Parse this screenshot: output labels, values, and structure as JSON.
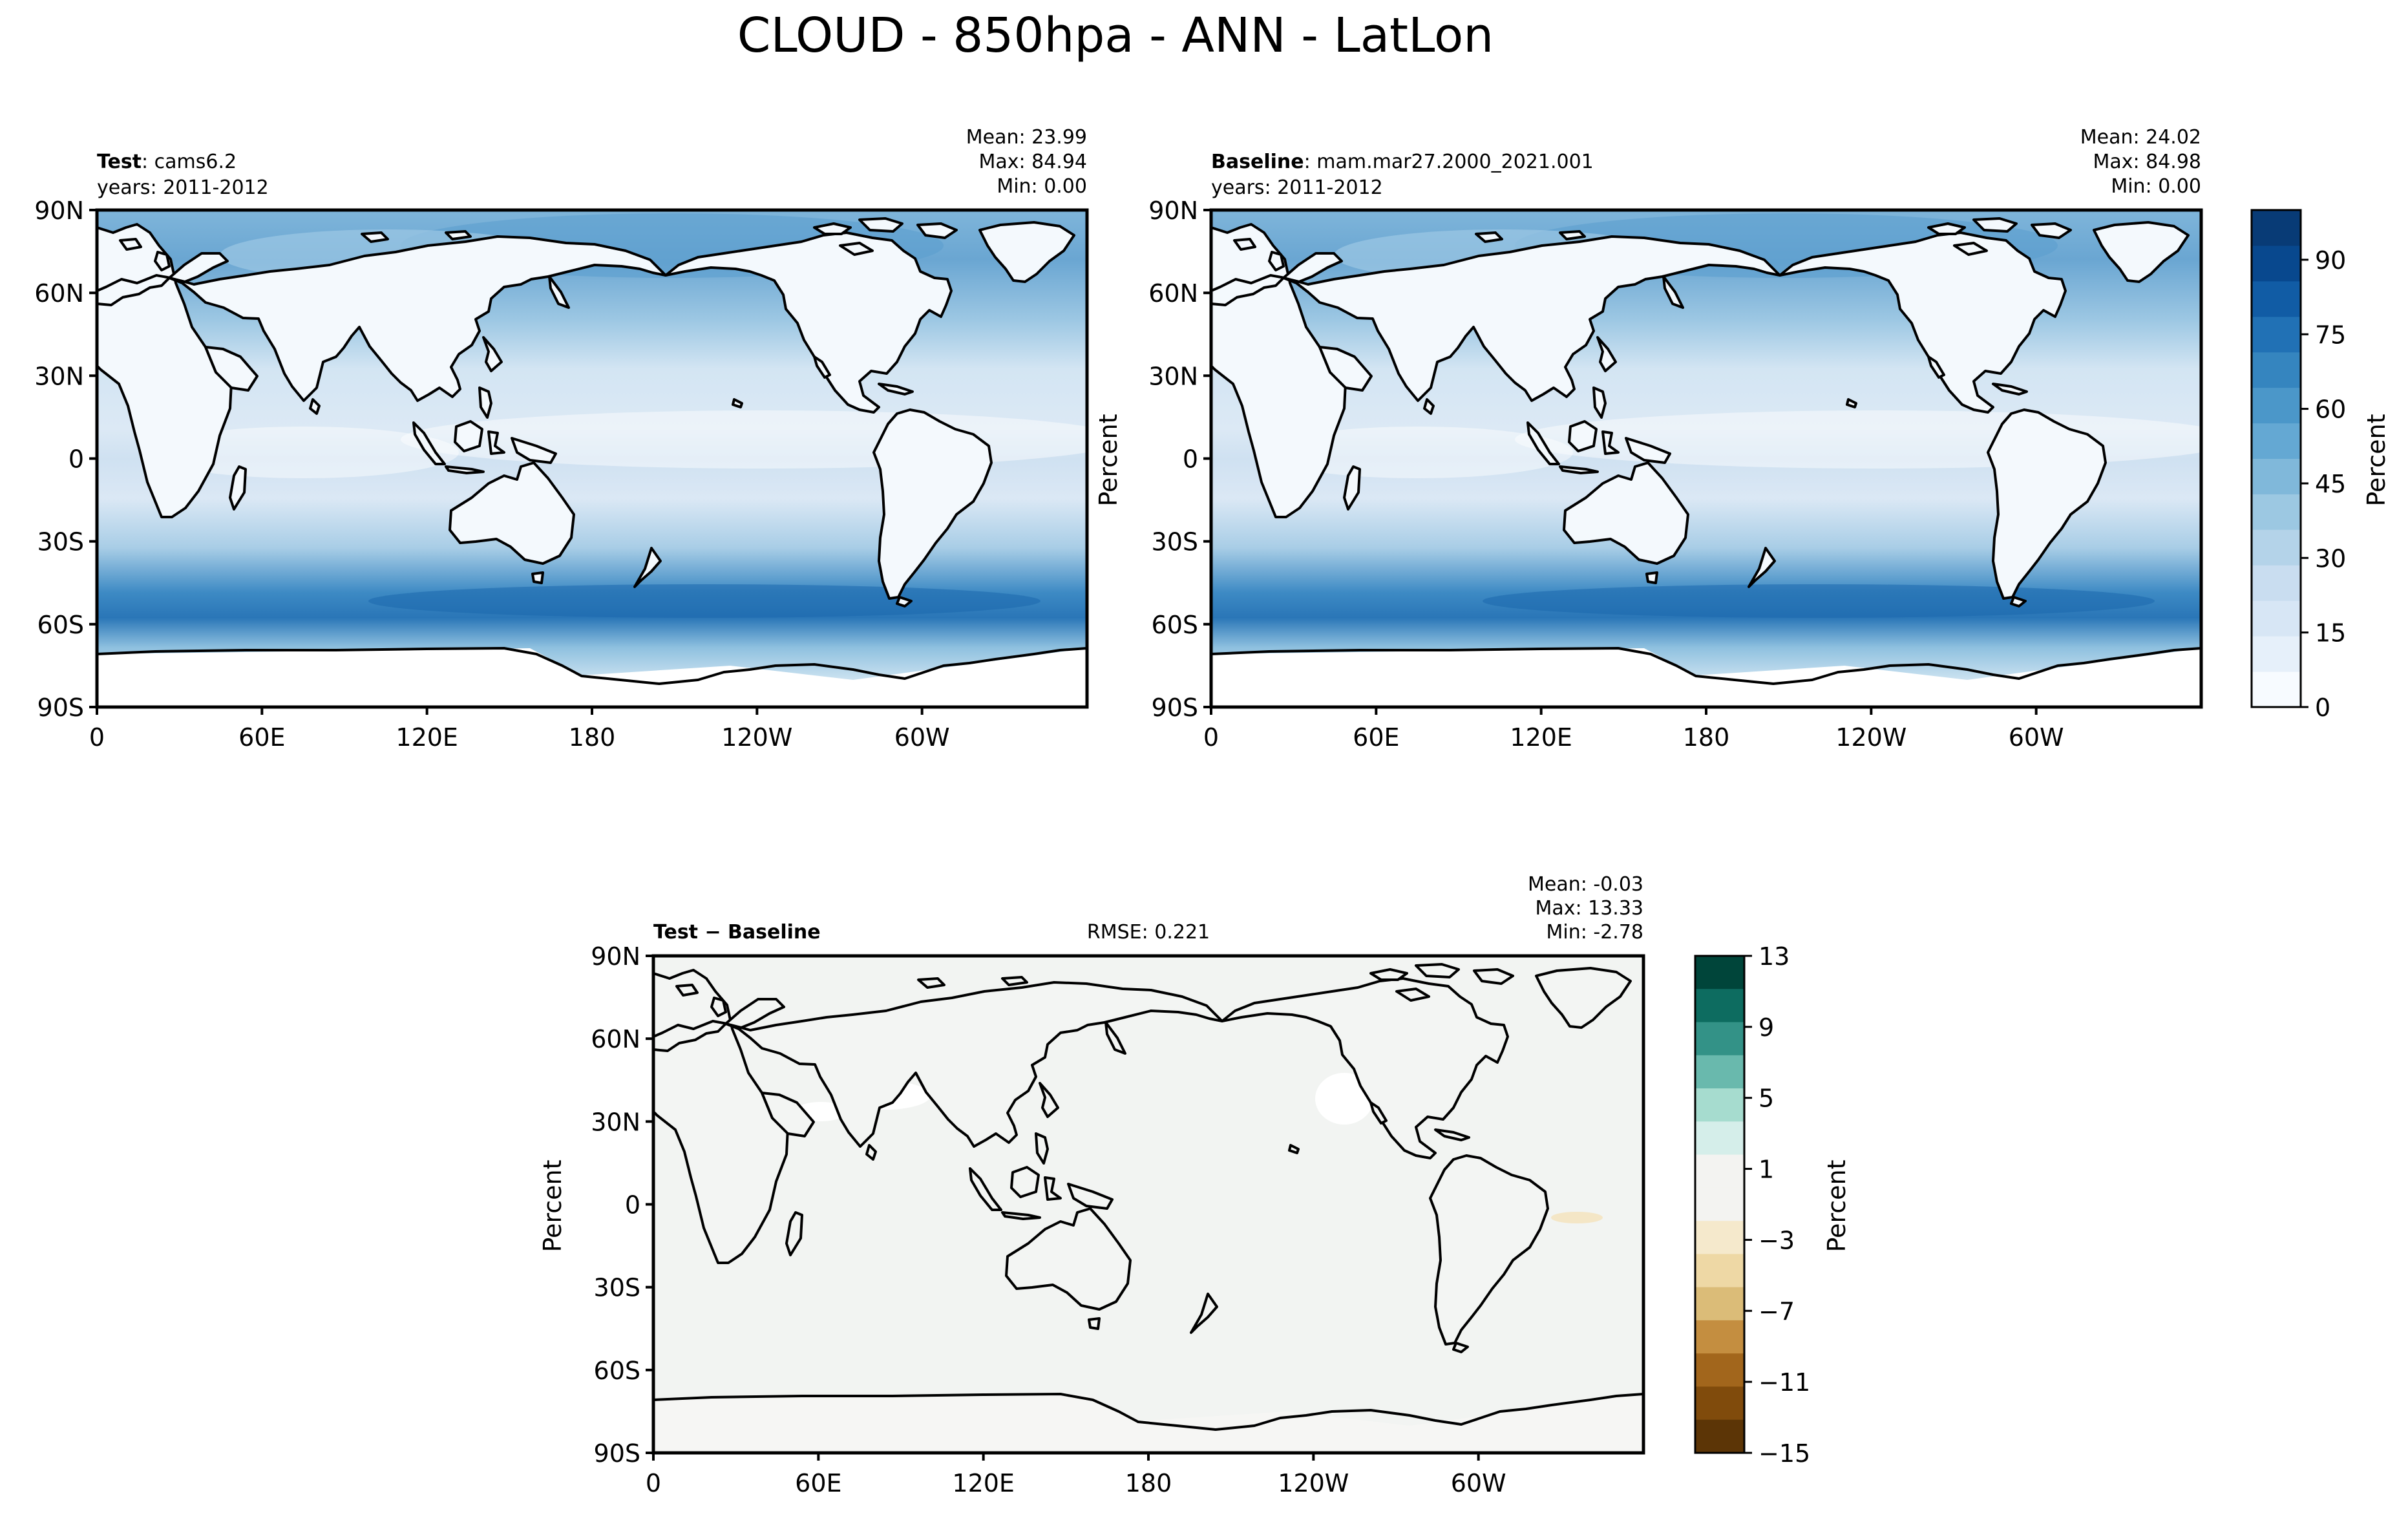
{
  "figure": {
    "title": "CLOUD - 850hpa - ANN - LatLon"
  },
  "axes_ticks": {
    "lat": [
      "90N",
      "60N",
      "30N",
      "0",
      "30S",
      "60S",
      "90S"
    ],
    "lon": [
      "0",
      "60E",
      "120E",
      "180",
      "120W",
      "60W"
    ]
  },
  "panels": {
    "test": {
      "label_bold": "Test",
      "label_rest": ": cams6.2",
      "years": "years: 2011-2012",
      "mean": "Mean: 23.99",
      "max": "Max: 84.94",
      "min": "Min:  0.00"
    },
    "baseline": {
      "label_bold": "Baseline",
      "label_rest": ": mam.mar27.2000_2021.001",
      "years": "years: 2011-2012",
      "mean": "Mean: 24.02",
      "max": "Max: 84.98",
      "min": "Min:  0.00",
      "ylabel": "Percent"
    },
    "diff": {
      "label": "Test − Baseline",
      "rmse": "RMSE: 0.221",
      "mean": "Mean: -0.03",
      "max": "Max: 13.33",
      "min": "Min: -2.78",
      "ylabel": "Percent"
    }
  },
  "colorbar_main": {
    "label": "Percent",
    "ticks": [
      "0",
      "15",
      "30",
      "45",
      "60",
      "75",
      "90"
    ],
    "colors": [
      "#f7fbff",
      "#e6f0fa",
      "#d7e6f5",
      "#c9ddf0",
      "#b4d3e9",
      "#9cc8e2",
      "#80b8da",
      "#64a8d3",
      "#4b97c9",
      "#3585bf",
      "#2171b5",
      "#115ca5",
      "#08488e",
      "#083b76"
    ]
  },
  "colorbar_diff": {
    "label": "Percent",
    "ticks": [
      "13",
      "9",
      "5",
      "1",
      "−3",
      "−7",
      "−11",
      "−15"
    ],
    "colors": [
      "#00453a",
      "#0d6c60",
      "#339287",
      "#69b9ad",
      "#a6dccf",
      "#d5eeea",
      "#f3f3f1",
      "#f3f3f1",
      "#f5e9cc",
      "#eed8a5",
      "#dbbc78",
      "#c48e40",
      "#a2661c",
      "#804b0c",
      "#5c3506"
    ]
  },
  "chart_data": [
    {
      "type": "heatmap",
      "title": "CLOUD - 850hpa - ANN - LatLon",
      "panel": "Test: cams6.2",
      "years": "2011-2012",
      "variable": "CLOUD 850hpa annual mean",
      "units": "Percent",
      "x_ticks": [
        "0",
        "60E",
        "120E",
        "180",
        "120W",
        "60W"
      ],
      "y_ticks": [
        "90N",
        "60N",
        "30N",
        "0",
        "30S",
        "60S",
        "90S"
      ],
      "color_range": [
        0,
        100
      ],
      "stats": {
        "mean": 23.99,
        "max": 84.94,
        "min": 0.0
      }
    },
    {
      "type": "heatmap",
      "panel": "Baseline: mam.mar27.2000_2021.001",
      "years": "2011-2012",
      "units": "Percent",
      "x_ticks": [
        "0",
        "60E",
        "120E",
        "180",
        "120W",
        "60W"
      ],
      "y_ticks": [
        "90N",
        "60N",
        "30N",
        "0",
        "30S",
        "60S",
        "90S"
      ],
      "color_range": [
        0,
        100
      ],
      "stats": {
        "mean": 24.02,
        "max": 84.98,
        "min": 0.0
      }
    },
    {
      "type": "heatmap",
      "panel": "Test − Baseline",
      "units": "Percent",
      "x_ticks": [
        "0",
        "60E",
        "120E",
        "180",
        "120W",
        "60W"
      ],
      "y_ticks": [
        "90N",
        "60N",
        "30N",
        "0",
        "30S",
        "60S",
        "90S"
      ],
      "color_range": [
        -15,
        13
      ],
      "stats": {
        "mean": -0.03,
        "max": 13.33,
        "min": -2.78,
        "rmse": 0.221
      }
    }
  ]
}
